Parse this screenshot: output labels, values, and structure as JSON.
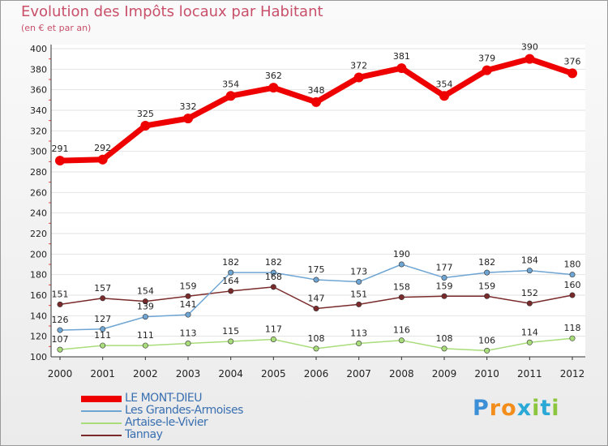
{
  "chart_data": {
    "type": "line",
    "title": "Evolution des Impôts locaux par Habitant",
    "subtitle": "(en € et par an)",
    "xlabel": "",
    "ylabel": "",
    "ylim": [
      100,
      400
    ],
    "ytick_step": 20,
    "x": [
      "2000",
      "2001",
      "2002",
      "2003",
      "2004",
      "2005",
      "2006",
      "2007",
      "2008",
      "2009",
      "2010",
      "2011",
      "2012"
    ],
    "series": [
      {
        "name": "LE MONT-DIEU",
        "color": "#ee0000",
        "values": [
          291,
          292,
          325,
          332,
          354,
          362,
          348,
          372,
          381,
          354,
          379,
          390,
          376
        ]
      },
      {
        "name": "Les Grandes-Armoises",
        "color": "#6fa5d2",
        "values": [
          126,
          127,
          139,
          141,
          182,
          182,
          175,
          173,
          190,
          177,
          182,
          184,
          180
        ]
      },
      {
        "name": "Artaise-le-Vivier",
        "color": "#a9dc7a",
        "values": [
          107,
          111,
          111,
          113,
          115,
          117,
          108,
          113,
          116,
          108,
          106,
          114,
          118
        ]
      },
      {
        "name": "Tannay",
        "color": "#7a2a2a",
        "values": [
          151,
          157,
          154,
          159,
          164,
          168,
          147,
          151,
          158,
          159,
          159,
          152,
          160
        ]
      }
    ]
  },
  "brand": {
    "letters": [
      "P",
      "r",
      "o",
      "x",
      "i",
      "t",
      "i"
    ],
    "colors": [
      "#3b8fd6",
      "#f28c1b",
      "#f28c1b",
      "#2aa8d6",
      "#8cc63f",
      "#2aa8d6",
      "#8cc63f"
    ]
  }
}
